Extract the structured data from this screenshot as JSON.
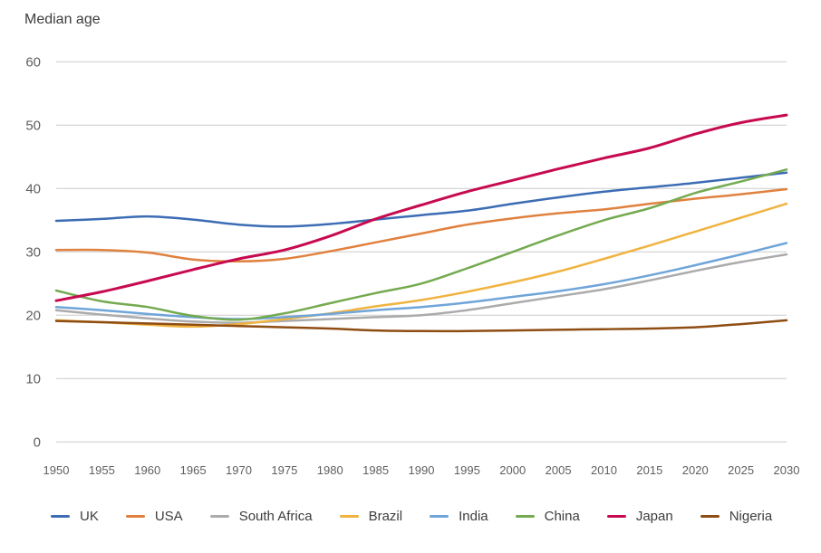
{
  "page": {
    "title": "Median age"
  },
  "chart_data": {
    "type": "line",
    "title": "Median age",
    "xlabel": "",
    "ylabel": "Median age",
    "ylim": [
      0,
      60
    ],
    "xlim": [
      1950,
      2030
    ],
    "grid": "horizontal",
    "legend_position": "bottom",
    "y_ticks": [
      0,
      10,
      20,
      30,
      40,
      50,
      60
    ],
    "x": [
      1950,
      1955,
      1960,
      1965,
      1970,
      1975,
      1980,
      1985,
      1990,
      1995,
      2000,
      2005,
      2010,
      2015,
      2020,
      2025,
      2030
    ],
    "colors": {
      "background": "#ffffff",
      "grid": "#cbcbcb",
      "tick_text": "#5f5f5f",
      "title_text": "#3d3d3d",
      "legend_text": "#3d3d3d"
    },
    "series": [
      {
        "name": "UK",
        "color": "#3c6cb4",
        "line_width": 2.5,
        "values": [
          34.9,
          35.2,
          35.6,
          35.1,
          34.3,
          34.0,
          34.4,
          35.1,
          35.8,
          36.5,
          37.6,
          38.6,
          39.5,
          40.2,
          40.9,
          41.7,
          42.5
        ]
      },
      {
        "name": "USA",
        "color": "#e0813f",
        "line_width": 2.5,
        "values": [
          30.3,
          30.3,
          29.9,
          28.8,
          28.5,
          28.9,
          30.1,
          31.5,
          32.9,
          34.3,
          35.3,
          36.1,
          36.7,
          37.6,
          38.4,
          39.1,
          39.9
        ]
      },
      {
        "name": "South Africa",
        "color": "#ababab",
        "line_width": 2.5,
        "values": [
          20.8,
          20.1,
          19.5,
          19.0,
          18.8,
          19.1,
          19.4,
          19.7,
          20.0,
          20.8,
          21.9,
          23.0,
          24.1,
          25.5,
          27.0,
          28.4,
          29.6
        ]
      },
      {
        "name": "Brazil",
        "color": "#f0b340",
        "line_width": 2.5,
        "values": [
          19.2,
          18.9,
          18.5,
          18.2,
          18.6,
          19.4,
          20.3,
          21.4,
          22.4,
          23.7,
          25.2,
          26.9,
          28.9,
          31.0,
          33.2,
          35.4,
          37.6
        ]
      },
      {
        "name": "India",
        "color": "#6fa5d8",
        "line_width": 2.5,
        "values": [
          21.3,
          20.8,
          20.2,
          19.7,
          19.4,
          19.7,
          20.2,
          20.8,
          21.3,
          22.0,
          22.9,
          23.8,
          24.9,
          26.3,
          27.9,
          29.6,
          31.4
        ]
      },
      {
        "name": "China",
        "color": "#74aa50",
        "line_width": 2.5,
        "values": [
          23.9,
          22.2,
          21.3,
          19.9,
          19.3,
          20.3,
          21.9,
          23.5,
          25.0,
          27.4,
          30.0,
          32.6,
          35.0,
          36.9,
          39.3,
          41.1,
          43.0
        ]
      },
      {
        "name": "Japan",
        "color": "#c70a50",
        "line_width": 3,
        "values": [
          22.3,
          23.7,
          25.4,
          27.2,
          28.9,
          30.3,
          32.5,
          35.2,
          37.4,
          39.5,
          41.3,
          43.1,
          44.8,
          46.4,
          48.6,
          50.4,
          51.6
        ]
      },
      {
        "name": "Nigeria",
        "color": "#8e4d13",
        "line_width": 2.5,
        "values": [
          19.1,
          18.9,
          18.7,
          18.5,
          18.3,
          18.1,
          17.9,
          17.6,
          17.5,
          17.5,
          17.6,
          17.7,
          17.8,
          17.9,
          18.1,
          18.6,
          19.2
        ]
      }
    ]
  }
}
